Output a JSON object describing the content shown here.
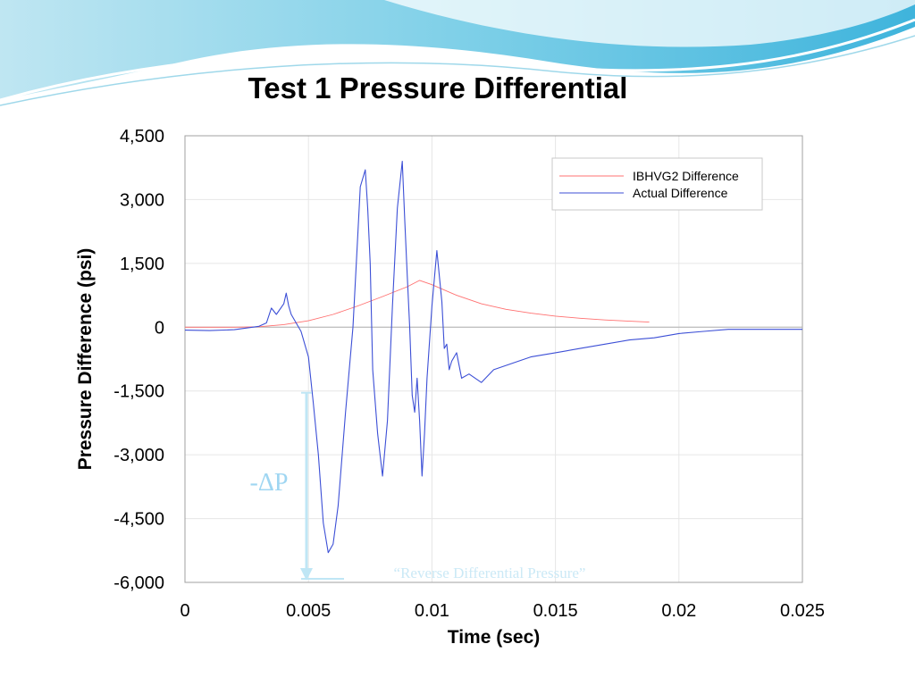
{
  "slide": {
    "title": "Test 1 Pressure Differential"
  },
  "chart_data": {
    "type": "line",
    "title": "Test 1 Pressure Differential",
    "xlabel": "Time (sec)",
    "ylabel": "Pressure Difference (psi)",
    "xlim": [
      0,
      0.025
    ],
    "ylim": [
      -6000,
      4500
    ],
    "x_ticks": [
      "0",
      "0.005",
      "0.01",
      "0.015",
      "0.02",
      "0.025"
    ],
    "y_ticks": [
      "4,500",
      "3,000",
      "1,500",
      "0",
      "-1,500",
      "-3,000",
      "-4,500",
      "-6,000"
    ],
    "grid": true,
    "legend_position": "top-right",
    "series": [
      {
        "name": "IBHVG2 Difference",
        "color": "#ff7070",
        "x": [
          0,
          0.002,
          0.003,
          0.004,
          0.005,
          0.006,
          0.007,
          0.008,
          0.009,
          0.0095,
          0.01,
          0.011,
          0.012,
          0.013,
          0.014,
          0.015,
          0.016,
          0.017,
          0.018,
          0.0188
        ],
        "y": [
          0,
          0,
          10,
          60,
          150,
          300,
          500,
          720,
          950,
          1100,
          1000,
          750,
          550,
          420,
          330,
          260,
          210,
          170,
          140,
          120
        ]
      },
      {
        "name": "Actual Difference",
        "color": "#3c4fd6",
        "x": [
          0,
          0.001,
          0.002,
          0.0025,
          0.003,
          0.0033,
          0.0035,
          0.0037,
          0.004,
          0.0041,
          0.0042,
          0.0043,
          0.0045,
          0.0047,
          0.005,
          0.0052,
          0.0054,
          0.0056,
          0.0058,
          0.006,
          0.0062,
          0.0065,
          0.0068,
          0.007,
          0.0071,
          0.0072,
          0.0073,
          0.0074,
          0.0075,
          0.0076,
          0.0078,
          0.008,
          0.0082,
          0.0084,
          0.0086,
          0.0088,
          0.0089,
          0.009,
          0.0091,
          0.0092,
          0.0093,
          0.0094,
          0.0095,
          0.0096,
          0.0097,
          0.0098,
          0.01,
          0.0102,
          0.0104,
          0.0105,
          0.0106,
          0.0107,
          0.0108,
          0.011,
          0.0112,
          0.0115,
          0.012,
          0.0125,
          0.013,
          0.0135,
          0.014,
          0.015,
          0.016,
          0.017,
          0.018,
          0.019,
          0.02,
          0.021,
          0.022,
          0.023,
          0.024,
          0.025
        ],
        "y": [
          -70,
          -80,
          -60,
          -20,
          20,
          100,
          450,
          300,
          550,
          800,
          500,
          300,
          100,
          -100,
          -700,
          -1800,
          -3000,
          -4600,
          -5300,
          -5100,
          -4200,
          -2000,
          0,
          2200,
          3300,
          3500,
          3700,
          2800,
          1500,
          -1000,
          -2500,
          -3500,
          -2200,
          500,
          2800,
          3900,
          2500,
          1200,
          0,
          -1600,
          -2000,
          -1200,
          -2200,
          -3500,
          -2500,
          -1200,
          500,
          1800,
          600,
          -500,
          -400,
          -1000,
          -800,
          -600,
          -1200,
          -1100,
          -1300,
          -1000,
          -900,
          -800,
          -700,
          -600,
          -500,
          -400,
          -300,
          -250,
          -150,
          -100,
          -50,
          -50,
          -50,
          -50
        ]
      }
    ],
    "annotations": {
      "delta_p": "-ΔP",
      "reverse_label": "“Reverse Differential Pressure”"
    }
  }
}
